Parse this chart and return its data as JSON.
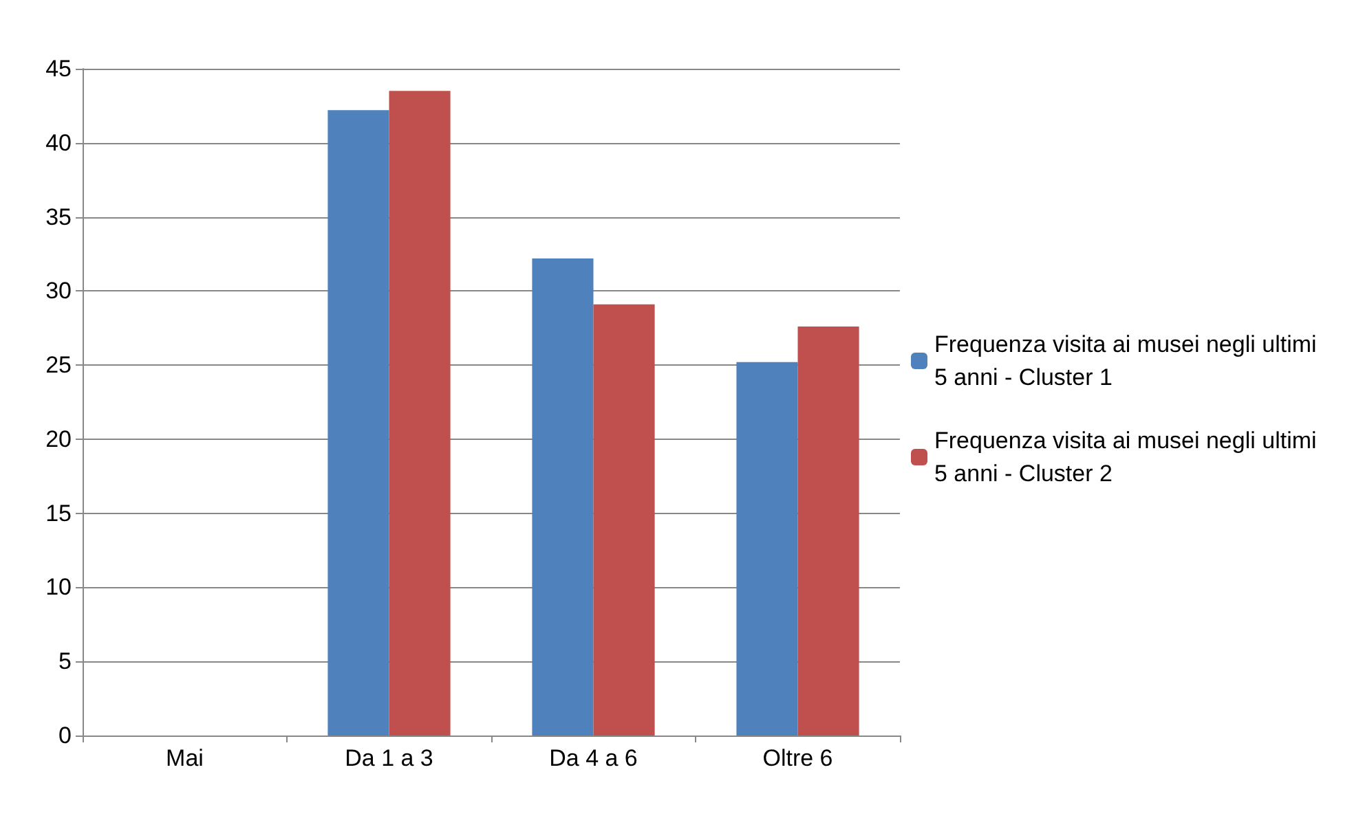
{
  "chart_data": {
    "type": "bar",
    "categories": [
      "Mai",
      "Da 1 a 3",
      "Da 4 a 6",
      "Oltre 6"
    ],
    "series": [
      {
        "name": "Frequenza visita ai musei negli ultimi 5 anni - Cluster 1",
        "color": "#4f81bd",
        "values": [
          0,
          42.2,
          32.2,
          25.2
        ]
      },
      {
        "name": "Frequenza visita ai musei negli ultimi 5 anni - Cluster 2",
        "color": "#c0504d",
        "values": [
          0,
          43.5,
          29.1,
          27.6
        ]
      }
    ],
    "ylim": [
      0,
      45
    ],
    "yticks": [
      0,
      5,
      10,
      15,
      20,
      25,
      30,
      35,
      40,
      45
    ],
    "grid": "y",
    "legend": "right"
  }
}
